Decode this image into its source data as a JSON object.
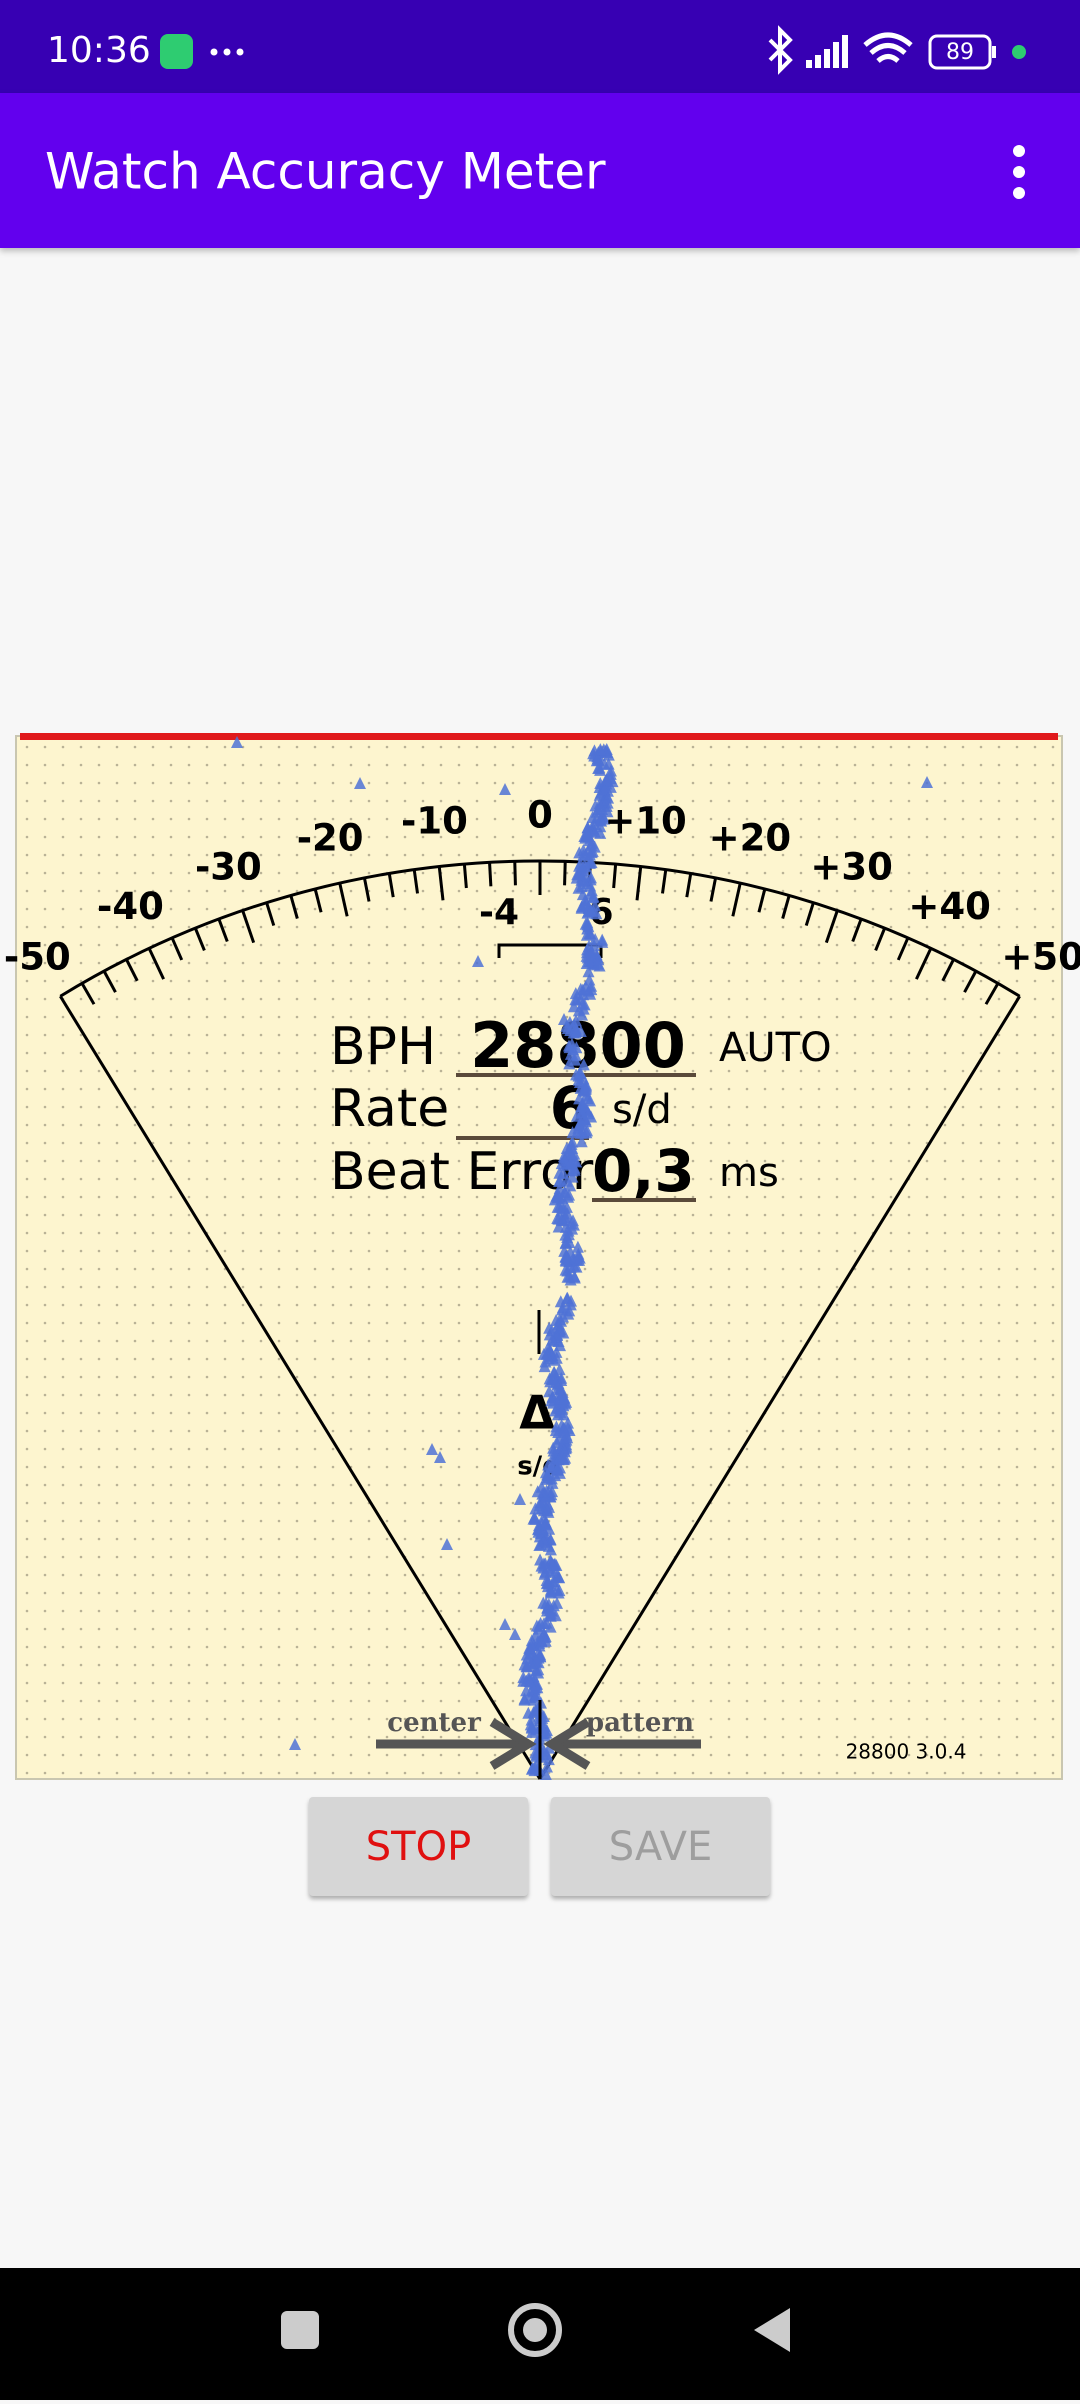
{
  "status_bar": {
    "time": "10:36",
    "battery": "89"
  },
  "app_bar": {
    "title": "Watch Accuracy Meter"
  },
  "meter": {
    "scale_labels": [
      "-50",
      "-40",
      "-30",
      "-20",
      "-10",
      "0",
      "+10",
      "+20",
      "+30",
      "+40",
      "+50"
    ],
    "range_low": "-4",
    "range_high": "6",
    "bph_label": "BPH",
    "bph_value": "28800",
    "bph_mode": "AUTO",
    "rate_label": "Rate",
    "rate_value": "6",
    "rate_unit": "s/d",
    "beat_error_label": "Beat Error",
    "beat_error_value": "0,3",
    "beat_error_unit": "ms",
    "delta_symbol": "Δ",
    "delta_unit": "s/d",
    "center_label": "center",
    "pattern_label": "pattern",
    "version": "28800 3.0.4"
  },
  "buttons": {
    "stop": "STOP",
    "save": "SAVE"
  }
}
